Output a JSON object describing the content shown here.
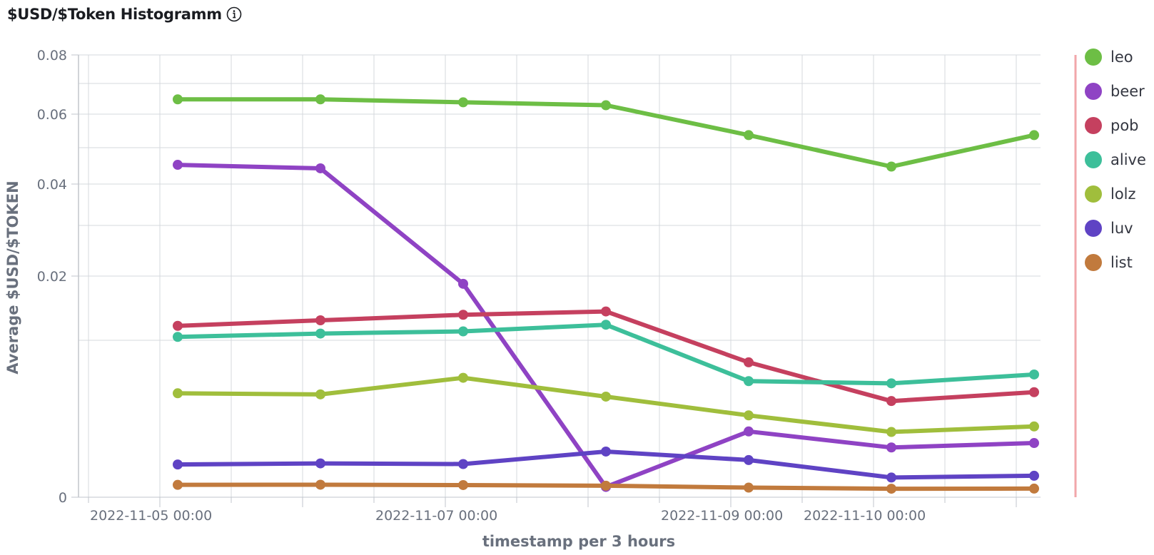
{
  "title": "$USD/$Token Histogramm",
  "info_icon": "info-circle-icon",
  "chart_data": {
    "type": "line",
    "title": "$USD/$Token Histogramm",
    "xlabel": "timestamp per 3 hours",
    "ylabel": "Average $USD/$TOKEN",
    "y_tick_labels": [
      "0",
      "0.02",
      "0.04",
      "0.06",
      "0.08"
    ],
    "x_tick_labels": [
      "2022-11-05 00:00",
      "2022-11-07 00:00",
      "2022-11-09 00:00",
      "2022-11-10 00:00"
    ],
    "x": [
      "2022-11-05 03:00",
      "2022-11-06 03:00",
      "2022-11-07 03:00",
      "2022-11-08 03:00",
      "2022-11-09 03:00",
      "2022-11-10 03:00",
      "2022-11-11 03:00"
    ],
    "grid": true,
    "legend_position": "right",
    "series": [
      {
        "name": "leo",
        "color": "#6dbe45",
        "values": [
          0.065,
          0.065,
          0.064,
          0.063,
          0.054,
          0.045,
          0.054
        ]
      },
      {
        "name": "beer",
        "color": "#8f43c4",
        "values": [
          0.0455,
          0.0445,
          0.0193,
          0.00093,
          0.00595,
          0.0045,
          0.0049
        ]
      },
      {
        "name": "pob",
        "color": "#c5405f",
        "values": [
          0.0155,
          0.016,
          0.0165,
          0.0168,
          0.0122,
          0.0087,
          0.0095
        ]
      },
      {
        "name": "alive",
        "color": "#3dbf9a",
        "values": [
          0.0145,
          0.0148,
          0.015,
          0.0156,
          0.0105,
          0.0103,
          0.0111
        ]
      },
      {
        "name": "lolz",
        "color": "#a0be3c",
        "values": [
          0.0094,
          0.0093,
          0.0108,
          0.0091,
          0.0074,
          0.0059,
          0.0064
        ]
      },
      {
        "name": "luv",
        "color": "#5f43c4",
        "values": [
          0.00296,
          0.00306,
          0.003,
          0.00413,
          0.00336,
          0.00178,
          0.00194
        ]
      },
      {
        "name": "list",
        "color": "#c17a3d",
        "values": [
          0.00112,
          0.00113,
          0.0011,
          0.00104,
          0.00087,
          0.00077,
          0.00078
        ]
      }
    ]
  }
}
